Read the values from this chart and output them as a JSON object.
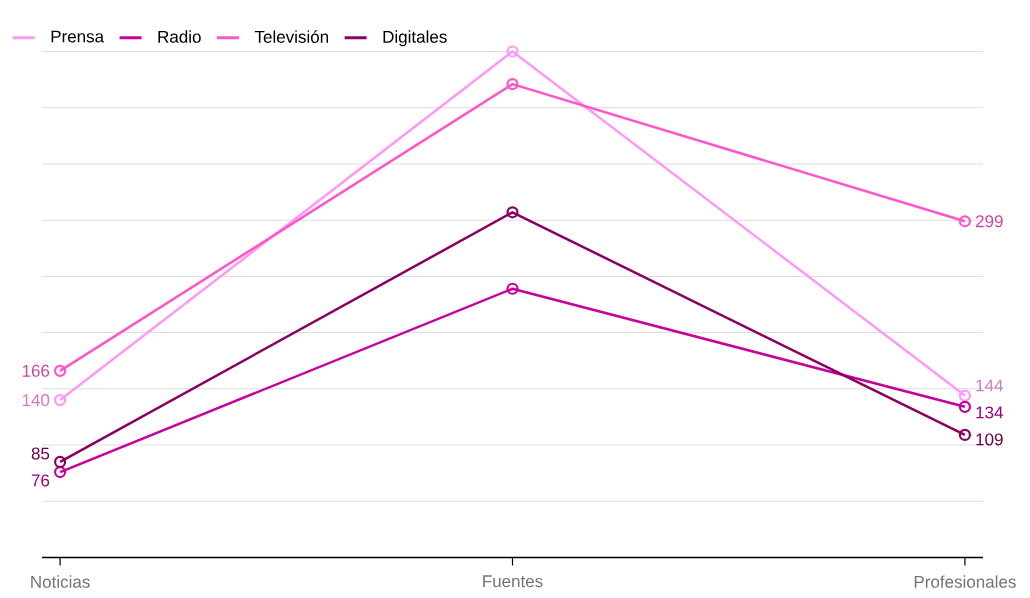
{
  "chart_data": {
    "type": "line",
    "categories": [
      "Noticias",
      "Fuentes",
      "Profesionales"
    ],
    "series": [
      {
        "name": "Prensa",
        "color": "#ff99f5",
        "values": [
          140,
          450,
          144
        ],
        "value_labels": [
          "140",
          null,
          "144"
        ]
      },
      {
        "name": "Radio",
        "color": "#c8009a",
        "values": [
          76,
          239,
          134
        ],
        "value_labels": [
          "76",
          null,
          "134"
        ]
      },
      {
        "name": "Televisión",
        "color": "#ff55c8",
        "values": [
          166,
          421,
          299
        ],
        "value_labels": [
          "166",
          null,
          "299"
        ]
      },
      {
        "name": "Digitales",
        "color": "#8a0060",
        "values": [
          85,
          307,
          109
        ],
        "value_labels": [
          "85",
          null,
          "109"
        ]
      }
    ],
    "ylim": [
      0,
      450
    ],
    "yticks": [
      {
        "value": 50,
        "label": null
      },
      {
        "value": 100,
        "label": null
      },
      {
        "value": 150,
        "label": null
      },
      {
        "value": 200,
        "label": null
      },
      {
        "value": 250,
        "label": null
      },
      {
        "value": 300,
        "label": null
      },
      {
        "value": 350,
        "label": null
      },
      {
        "value": 400,
        "label": null
      },
      {
        "value": 450,
        "label": null
      }
    ],
    "tick_labels": "x",
    "grid": "y",
    "legend": "top left",
    "marker": "circle",
    "line_style": "solid"
  }
}
